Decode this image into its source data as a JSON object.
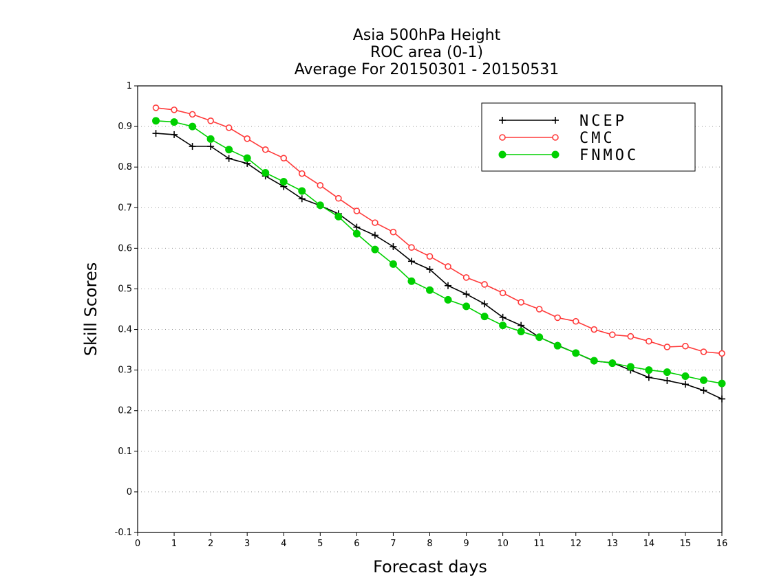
{
  "chart_data": {
    "type": "line",
    "title": [
      "Asia 500hPa Height",
      "ROC area (0-1)",
      "Average For 20150301 - 20150531"
    ],
    "xlabel": "Forecast days",
    "ylabel": "Skill Scores",
    "xlim": [
      0,
      16
    ],
    "ylim": [
      -0.1,
      1
    ],
    "xticks": [
      0,
      1,
      2,
      3,
      4,
      5,
      6,
      7,
      8,
      9,
      10,
      11,
      12,
      13,
      14,
      15,
      16
    ],
    "xtick_labels": [
      "0",
      "1",
      "2",
      "3",
      "4",
      "5",
      "6",
      "7",
      "8",
      "9",
      "10",
      "11",
      "12",
      "13",
      "14",
      "15",
      "16"
    ],
    "yticks": [
      -0.1,
      0,
      0.1,
      0.2,
      0.3,
      0.4,
      0.5,
      0.6,
      0.7,
      0.8,
      0.9,
      1
    ],
    "ytick_labels": [
      "-0.1",
      "0",
      "0.1",
      "0.2",
      "0.3",
      "0.4",
      "0.5",
      "0.6",
      "0.7",
      "0.8",
      "0.9",
      "1"
    ],
    "grid": "horizontal dotted",
    "legend_position": "top-right",
    "x": [
      0.5,
      1,
      1.5,
      2,
      2.5,
      3,
      3.5,
      4,
      4.5,
      5,
      5.5,
      6,
      6.5,
      7,
      7.5,
      8,
      8.5,
      9,
      9.5,
      10,
      10.5,
      11,
      11.5,
      12,
      12.5,
      13,
      13.5,
      14,
      14.5,
      15,
      15.5,
      16
    ],
    "series": [
      {
        "name": "NCEP",
        "color": "#000000",
        "marker": "plus",
        "values": [
          0.883,
          0.88,
          0.851,
          0.851,
          0.821,
          0.809,
          0.778,
          0.752,
          0.722,
          0.705,
          0.685,
          0.652,
          0.632,
          0.604,
          0.568,
          0.548,
          0.508,
          0.487,
          0.463,
          0.43,
          0.41,
          0.381,
          0.361,
          0.342,
          0.322,
          0.318,
          0.3,
          0.282,
          0.274,
          0.265,
          0.25,
          0.229
        ]
      },
      {
        "name": "CMC",
        "color": "#ff3a3a",
        "marker": "open-circle",
        "values": [
          0.946,
          0.941,
          0.93,
          0.914,
          0.897,
          0.87,
          0.843,
          0.822,
          0.784,
          0.755,
          0.723,
          0.692,
          0.663,
          0.64,
          0.602,
          0.58,
          0.555,
          0.528,
          0.511,
          0.49,
          0.467,
          0.45,
          0.429,
          0.42,
          0.4,
          0.387,
          0.383,
          0.371,
          0.357,
          0.359,
          0.345,
          0.341
        ]
      },
      {
        "name": "FNMOC",
        "color": "#00d000",
        "marker": "filled-circle",
        "values": [
          0.914,
          0.911,
          0.9,
          0.869,
          0.843,
          0.822,
          0.786,
          0.764,
          0.741,
          0.706,
          0.678,
          0.636,
          0.597,
          0.561,
          0.519,
          0.497,
          0.473,
          0.457,
          0.432,
          0.41,
          0.395,
          0.381,
          0.36,
          0.342,
          0.323,
          0.317,
          0.308,
          0.3,
          0.295,
          0.285,
          0.275,
          0.267
        ]
      }
    ]
  }
}
